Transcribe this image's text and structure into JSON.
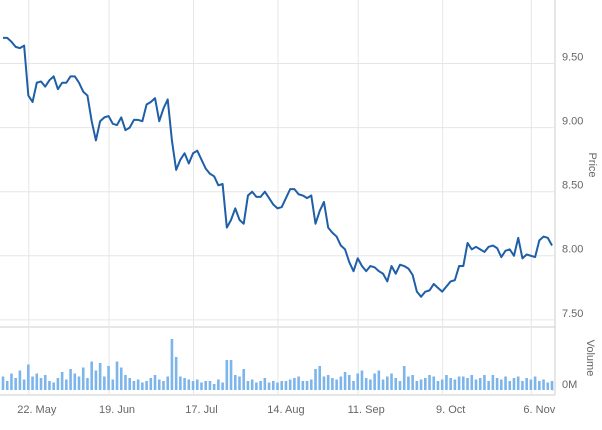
{
  "chart_data": {
    "type": "line",
    "categories": [
      null,
      null,
      null,
      null,
      null,
      null,
      null,
      null,
      "22. May",
      null,
      null,
      null,
      null,
      null,
      null,
      null,
      null,
      null,
      null,
      null,
      null,
      null,
      null,
      null,
      null,
      null,
      null,
      "19. Jun",
      null,
      null,
      null,
      null,
      null,
      null,
      null,
      null,
      null,
      null,
      null,
      null,
      null,
      null,
      null,
      null,
      null,
      null,
      null,
      "17. Jul",
      null,
      null,
      null,
      null,
      null,
      null,
      null,
      null,
      null,
      null,
      null,
      null,
      null,
      null,
      null,
      null,
      null,
      null,
      null,
      "14. Aug",
      null,
      null,
      null,
      null,
      null,
      null,
      null,
      null,
      null,
      null,
      null,
      null,
      null,
      null,
      null,
      null,
      null,
      null,
      "11. Sep",
      null,
      null,
      null,
      null,
      null,
      null,
      null,
      null,
      null,
      null,
      null,
      null,
      null,
      null,
      null,
      null,
      null,
      null,
      null,
      "9. Oct",
      null,
      null,
      null,
      null,
      null,
      null,
      null,
      null,
      null,
      null,
      null,
      null,
      null,
      null,
      null,
      null,
      null,
      null,
      null,
      null,
      "6. Nov",
      null,
      null,
      null
    ],
    "ylabel": "Price",
    "ylim": [
      7.46,
      9.98
    ],
    "yticks": [
      {
        "value": 7.5,
        "label": "7.50"
      },
      {
        "value": 8,
        "label": "8.00"
      },
      {
        "value": 8.5,
        "label": "8.50"
      },
      {
        "value": 9,
        "label": "9.00"
      },
      {
        "value": 9.5,
        "label": "9.50"
      }
    ],
    "y2label": "Volume",
    "y2lim": [
      0,
      4
    ],
    "y2ticks": [
      {
        "value": 0,
        "label": "0M"
      }
    ],
    "grid": true,
    "series": [
      {
        "color": "#1f5fa8",
        "values": [
          9.7,
          9.7,
          9.67,
          9.63,
          9.62,
          9.64,
          9.25,
          9.2,
          9.35,
          9.36,
          9.32,
          9.37,
          9.4,
          9.3,
          9.35,
          9.35,
          9.4,
          9.4,
          9.35,
          9.28,
          9.25,
          9.05,
          8.9,
          9.05,
          9.08,
          9.09,
          9.03,
          9.02,
          9.08,
          8.98,
          9.0,
          9.06,
          9.06,
          9.05,
          9.18,
          9.2,
          9.23,
          9.05,
          9.15,
          9.22,
          8.9,
          8.67,
          8.75,
          8.8,
          8.72,
          8.8,
          8.82,
          8.75,
          8.68,
          8.64,
          8.62,
          8.55,
          8.56,
          8.22,
          8.28,
          8.37,
          8.28,
          8.25,
          8.47,
          8.5,
          8.46,
          8.46,
          8.5,
          8.45,
          8.4,
          8.37,
          8.38,
          8.45,
          8.52,
          8.52,
          8.48,
          8.47,
          8.45,
          8.47,
          8.25,
          8.35,
          8.42,
          8.22,
          8.18,
          8.15,
          8.08,
          8.05,
          7.95,
          7.88,
          7.98,
          7.92,
          7.88,
          7.92,
          7.91,
          7.88,
          7.86,
          7.8,
          7.92,
          7.86,
          7.93,
          7.92,
          7.9,
          7.85,
          7.72,
          7.68,
          7.72,
          7.73,
          7.78,
          7.75,
          7.72,
          7.76,
          7.8,
          7.81,
          7.92,
          7.92,
          8.1,
          8.05,
          8.07,
          8.05,
          8.03,
          8.07,
          8.08,
          8.06,
          7.99,
          8.04,
          8.05,
          8.0,
          8.14,
          7.98,
          8.01,
          8.0,
          7.99,
          8.12,
          8.15,
          8.14,
          8.08
        ]
      },
      {
        "type": "bar",
        "axis": "y2",
        "color": "#7cb5ec",
        "values": [
          0.9,
          0.6,
          1.1,
          0.8,
          1.3,
          0.7,
          1.7,
          0.9,
          1.1,
          0.8,
          1.0,
          0.6,
          0.5,
          0.8,
          1.2,
          0.7,
          1.4,
          1.1,
          0.9,
          1.5,
          0.8,
          1.9,
          1.3,
          1.8,
          0.9,
          1.6,
          0.7,
          1.9,
          1.5,
          1.0,
          0.8,
          0.6,
          0.7,
          0.5,
          0.6,
          0.8,
          1.0,
          0.7,
          0.6,
          0.9,
          3.4,
          2.2,
          0.9,
          0.8,
          0.7,
          0.6,
          0.7,
          0.5,
          0.6,
          0.6,
          0.4,
          0.7,
          0.5,
          2.0,
          2.0,
          1.0,
          0.9,
          1.4,
          0.6,
          0.7,
          0.5,
          0.6,
          0.8,
          0.5,
          0.6,
          0.5,
          0.6,
          0.6,
          0.7,
          0.8,
          0.9,
          0.6,
          0.6,
          0.7,
          1.4,
          1.6,
          0.9,
          1.0,
          0.8,
          0.7,
          0.9,
          1.2,
          1.0,
          0.6,
          1.1,
          1.3,
          0.8,
          0.7,
          1.1,
          1.3,
          0.7,
          0.9,
          1.1,
          0.8,
          0.6,
          1.6,
          0.9,
          1.0,
          0.6,
          0.7,
          0.8,
          1.0,
          0.9,
          0.6,
          0.7,
          1.0,
          0.8,
          0.7,
          0.9,
          0.9,
          0.8,
          1.0,
          0.7,
          0.8,
          1.0,
          0.6,
          1.0,
          0.8,
          0.7,
          0.9,
          0.6,
          0.8,
          0.9,
          0.6,
          0.8,
          0.7,
          0.9,
          0.6,
          0.7,
          0.5,
          0.6
        ]
      }
    ]
  }
}
